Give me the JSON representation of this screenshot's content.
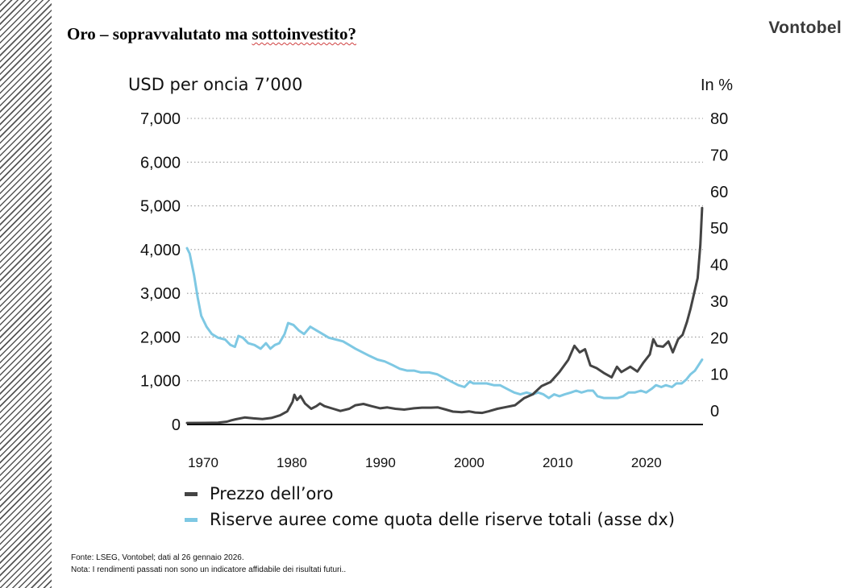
{
  "slide": {
    "title_prefix": "Oro – sopravvalutato ma ",
    "title_underlined": "sottoinvestito?",
    "brand": "Vontobel",
    "footnote_source": "Fonte: LSEG, Vontobel; dati al 26 gennaio 2026.",
    "footnote_note": "Nota: I rendimenti passati non sono un indicatore affidabile dei risultati futuri.."
  },
  "colors": {
    "gold_price": "#444444",
    "reserves_share": "#7ec8e3",
    "axis": "#111111",
    "grid": "#9a9a9a"
  },
  "chart_data": {
    "type": "line",
    "ylabel_left": "USD per oncia 7’000",
    "ylabel_right": "In %",
    "xlim": [
      1968,
      2026.2
    ],
    "ylim_left": [
      0,
      7000
    ],
    "ylim_right": [
      -4,
      80
    ],
    "x_ticks": [
      1970,
      1980,
      1990,
      2000,
      2010,
      2020
    ],
    "y_ticks_left": [
      0,
      1000,
      2000,
      3000,
      4000,
      5000,
      6000,
      7000
    ],
    "y_ticks_left_labels": [
      "0",
      "1,000",
      "2,000",
      "3,000",
      "4,000",
      "5,000",
      "6,000",
      "7,000"
    ],
    "y_ticks_right": [
      0,
      10,
      20,
      30,
      40,
      50,
      60,
      70,
      80
    ],
    "grid": "horizontal dotted",
    "legend_position": "bottom",
    "series": [
      {
        "name": "Prezzo dell’oro",
        "axis": "left",
        "points": [
          [
            1968.0,
            35
          ],
          [
            1970.0,
            36
          ],
          [
            1971.5,
            42
          ],
          [
            1972.5,
            65
          ],
          [
            1973.0,
            95
          ],
          [
            1973.5,
            120
          ],
          [
            1974.5,
            160
          ],
          [
            1975.5,
            140
          ],
          [
            1976.5,
            125
          ],
          [
            1977.5,
            150
          ],
          [
            1978.5,
            210
          ],
          [
            1979.3,
            300
          ],
          [
            1979.9,
            520
          ],
          [
            1980.1,
            680
          ],
          [
            1980.4,
            560
          ],
          [
            1980.8,
            650
          ],
          [
            1981.3,
            480
          ],
          [
            1982.0,
            360
          ],
          [
            1982.6,
            420
          ],
          [
            1983.0,
            480
          ],
          [
            1983.5,
            420
          ],
          [
            1984.5,
            360
          ],
          [
            1985.3,
            310
          ],
          [
            1986.3,
            360
          ],
          [
            1987.0,
            440
          ],
          [
            1987.9,
            470
          ],
          [
            1988.8,
            420
          ],
          [
            1989.8,
            370
          ],
          [
            1990.6,
            390
          ],
          [
            1991.5,
            360
          ],
          [
            1992.5,
            340
          ],
          [
            1993.6,
            370
          ],
          [
            1994.5,
            385
          ],
          [
            1995.5,
            385
          ],
          [
            1996.3,
            390
          ],
          [
            1997.2,
            340
          ],
          [
            1998.0,
            295
          ],
          [
            1999.0,
            280
          ],
          [
            1999.8,
            300
          ],
          [
            2000.5,
            275
          ],
          [
            2001.3,
            265
          ],
          [
            2002.0,
            300
          ],
          [
            2003.0,
            360
          ],
          [
            2004.0,
            400
          ],
          [
            2005.0,
            440
          ],
          [
            2006.0,
            600
          ],
          [
            2007.0,
            690
          ],
          [
            2008.0,
            880
          ],
          [
            2009.0,
            970
          ],
          [
            2010.0,
            1200
          ],
          [
            2011.0,
            1480
          ],
          [
            2011.7,
            1800
          ],
          [
            2012.3,
            1650
          ],
          [
            2012.9,
            1720
          ],
          [
            2013.5,
            1350
          ],
          [
            2014.2,
            1290
          ],
          [
            2015.0,
            1180
          ],
          [
            2015.9,
            1080
          ],
          [
            2016.5,
            1320
          ],
          [
            2017.0,
            1200
          ],
          [
            2018.0,
            1320
          ],
          [
            2018.8,
            1210
          ],
          [
            2019.5,
            1420
          ],
          [
            2020.2,
            1600
          ],
          [
            2020.6,
            1950
          ],
          [
            2021.0,
            1800
          ],
          [
            2021.7,
            1780
          ],
          [
            2022.3,
            1900
          ],
          [
            2022.8,
            1650
          ],
          [
            2023.4,
            1950
          ],
          [
            2023.9,
            2050
          ],
          [
            2024.4,
            2350
          ],
          [
            2024.8,
            2650
          ],
          [
            2025.2,
            3000
          ],
          [
            2025.6,
            3350
          ],
          [
            2025.9,
            4100
          ],
          [
            2026.1,
            4950
          ]
        ]
      },
      {
        "name": "Riserve auree come quota delle riserve totali (asse dx)",
        "axis": "right",
        "points": [
          [
            1968.0,
            44.5
          ],
          [
            1968.3,
            43
          ],
          [
            1968.8,
            37
          ],
          [
            1969.2,
            31
          ],
          [
            1969.6,
            26
          ],
          [
            1970.2,
            23
          ],
          [
            1970.8,
            21
          ],
          [
            1971.5,
            20
          ],
          [
            1972.3,
            19.5
          ],
          [
            1972.9,
            18
          ],
          [
            1973.4,
            17.5
          ],
          [
            1973.8,
            20.5
          ],
          [
            1974.3,
            20
          ],
          [
            1974.9,
            18.5
          ],
          [
            1975.6,
            18
          ],
          [
            1976.3,
            17
          ],
          [
            1976.9,
            18.5
          ],
          [
            1977.4,
            17
          ],
          [
            1977.9,
            18
          ],
          [
            1978.4,
            18.5
          ],
          [
            1979.0,
            21
          ],
          [
            1979.4,
            24
          ],
          [
            1980.0,
            23.5
          ],
          [
            1980.6,
            22
          ],
          [
            1981.2,
            21
          ],
          [
            1981.9,
            23
          ],
          [
            1982.6,
            22
          ],
          [
            1983.3,
            21
          ],
          [
            1984.0,
            20
          ],
          [
            1984.8,
            19.5
          ],
          [
            1985.6,
            19
          ],
          [
            1986.3,
            18
          ],
          [
            1987.0,
            17
          ],
          [
            1987.8,
            16
          ],
          [
            1988.6,
            15
          ],
          [
            1989.5,
            14
          ],
          [
            1990.3,
            13.5
          ],
          [
            1991.2,
            12.5
          ],
          [
            1992.0,
            11.5
          ],
          [
            1992.8,
            11
          ],
          [
            1993.6,
            11
          ],
          [
            1994.4,
            10.5
          ],
          [
            1995.3,
            10.5
          ],
          [
            1996.2,
            10
          ],
          [
            1997.0,
            9
          ],
          [
            1997.8,
            8
          ],
          [
            1998.6,
            7
          ],
          [
            1999.3,
            6.5
          ],
          [
            1999.9,
            8
          ],
          [
            2000.3,
            7.5
          ],
          [
            2001.0,
            7.5
          ],
          [
            2001.8,
            7.5
          ],
          [
            2002.6,
            7
          ],
          [
            2003.3,
            7
          ],
          [
            2004.1,
            6
          ],
          [
            2004.9,
            5
          ],
          [
            2005.6,
            4.5
          ],
          [
            2006.3,
            5
          ],
          [
            2007.0,
            4.5
          ],
          [
            2007.6,
            5
          ],
          [
            2008.2,
            4.5
          ],
          [
            2008.8,
            3.5
          ],
          [
            2009.4,
            4.5
          ],
          [
            2010.0,
            4
          ],
          [
            2010.6,
            4.5
          ],
          [
            2011.3,
            5
          ],
          [
            2011.9,
            5.5
          ],
          [
            2012.5,
            5
          ],
          [
            2013.2,
            5.5
          ],
          [
            2013.8,
            5.5
          ],
          [
            2014.3,
            4
          ],
          [
            2015.0,
            3.5
          ],
          [
            2015.8,
            3.5
          ],
          [
            2016.6,
            3.5
          ],
          [
            2017.2,
            4
          ],
          [
            2017.8,
            5
          ],
          [
            2018.5,
            5
          ],
          [
            2019.2,
            5.5
          ],
          [
            2019.8,
            5
          ],
          [
            2020.4,
            6
          ],
          [
            2020.9,
            7
          ],
          [
            2021.5,
            6.5
          ],
          [
            2022.0,
            7
          ],
          [
            2022.7,
            6.5
          ],
          [
            2023.2,
            7.5
          ],
          [
            2023.8,
            7.5
          ],
          [
            2024.3,
            8.5
          ],
          [
            2024.8,
            10
          ],
          [
            2025.3,
            11
          ],
          [
            2025.7,
            12.5
          ],
          [
            2026.1,
            14
          ]
        ]
      }
    ]
  }
}
